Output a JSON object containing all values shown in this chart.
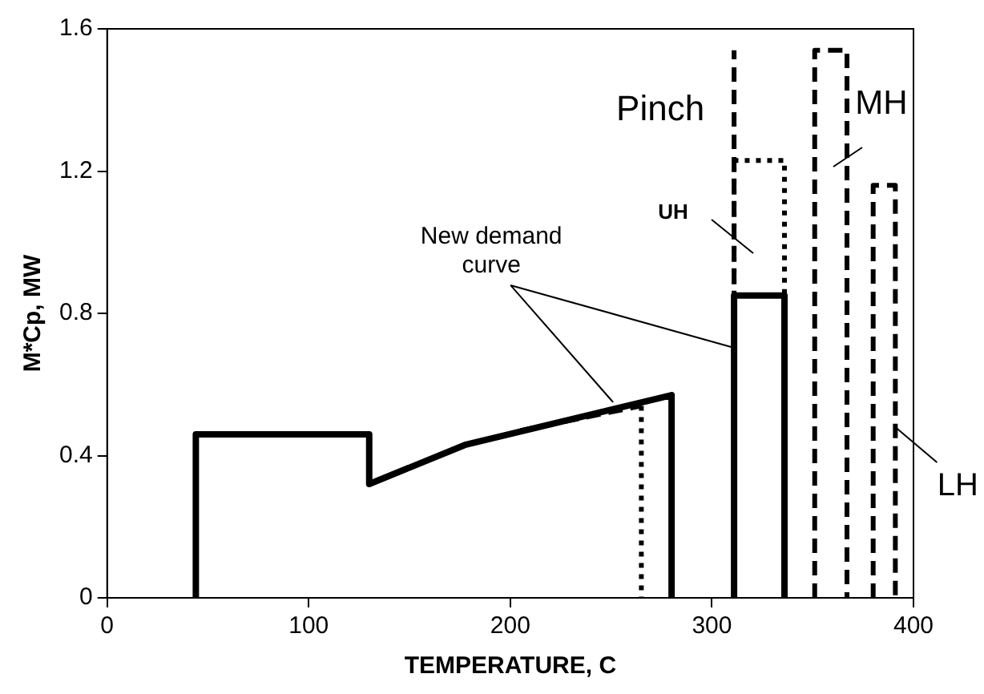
{
  "chart_data": {
    "type": "line",
    "xlabel": "TEMPERATURE, C",
    "ylabel": "M*Cp, MW",
    "xlim": [
      0,
      400
    ],
    "xticks": [
      0,
      100,
      200,
      300,
      400
    ],
    "ylim": [
      0,
      1.6
    ],
    "yticks": [
      0,
      0.4,
      0.8,
      1.2,
      1.6
    ],
    "grid": false,
    "legend": false,
    "marker": "none",
    "series": [
      {
        "color": "#000000",
        "line_style": "solid",
        "x": [
          44,
          44,
          130,
          130,
          177.5,
          280,
          280
        ],
        "values": [
          0,
          0.46,
          0.46,
          0.32,
          0.43,
          0.57,
          0
        ]
      },
      {
        "color": "#000000",
        "line_style": "solid",
        "x": [
          311,
          311,
          336,
          336
        ],
        "values": [
          0,
          0.85,
          0.85,
          0
        ]
      },
      {
        "color": "#000000",
        "line_style": "dashed",
        "x": [
          205,
          265
        ],
        "values": [
          0.47,
          0.54
        ]
      },
      {
        "color": "#000000",
        "line_style": "dotted",
        "x": [
          265,
          265
        ],
        "values": [
          0.54,
          0
        ]
      },
      {
        "color": "#000000",
        "line_style": "dashed",
        "x": [
          311,
          311
        ],
        "values": [
          0,
          1.54
        ]
      },
      {
        "color": "#000000",
        "line_style": "dotted",
        "x": [
          311,
          311,
          336,
          336
        ],
        "values": [
          0.85,
          1.23,
          1.23,
          0.85
        ]
      },
      {
        "color": "#000000",
        "line_style": "dashed",
        "x": [
          351,
          351,
          367,
          367
        ],
        "values": [
          0,
          1.54,
          1.54,
          0
        ]
      },
      {
        "color": "#000000",
        "line_style": "dashed",
        "x": [
          380,
          380,
          391,
          391
        ],
        "values": [
          0,
          1.16,
          1.16,
          0
        ]
      }
    ],
    "annotations": [
      {
        "text": "New demand curve",
        "x": 251,
        "y": 0.55
      },
      {
        "text": "Pinch",
        "x": 311,
        "y": 1.37
      },
      "UH",
      "MH",
      {
        "text": "LH",
        "x": 391,
        "y": 0.48
      }
    ]
  }
}
